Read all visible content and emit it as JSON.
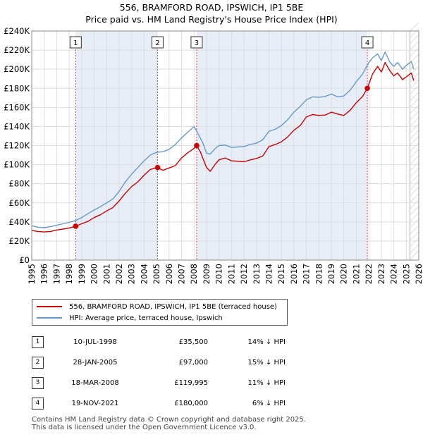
{
  "title": "556, BRAMFORD ROAD, IPSWICH, IP1 5BE",
  "subtitle": "Price paid vs. HM Land Registry's House Price Index (HPI)",
  "chart_data": {
    "type": "line",
    "xlim": [
      1995,
      2026
    ],
    "ylim": [
      0,
      240000
    ],
    "x_ticks": [
      "1995",
      "1996",
      "1997",
      "1998",
      "1999",
      "2000",
      "2001",
      "2002",
      "2003",
      "2004",
      "2005",
      "2006",
      "2007",
      "2008",
      "2009",
      "2010",
      "2011",
      "2012",
      "2013",
      "2014",
      "2015",
      "2016",
      "2017",
      "2018",
      "2019",
      "2020",
      "2021",
      "2022",
      "2023",
      "2024",
      "2025",
      "2026"
    ],
    "y_ticks": [
      {
        "value": 0,
        "label": "£0"
      },
      {
        "value": 20000,
        "label": "£20K"
      },
      {
        "value": 40000,
        "label": "£40K"
      },
      {
        "value": 60000,
        "label": "£60K"
      },
      {
        "value": 80000,
        "label": "£80K"
      },
      {
        "value": 100000,
        "label": "£100K"
      },
      {
        "value": 120000,
        "label": "£120K"
      },
      {
        "value": 140000,
        "label": "£140K"
      },
      {
        "value": 160000,
        "label": "£160K"
      },
      {
        "value": 180000,
        "label": "£180K"
      },
      {
        "value": 200000,
        "label": "£200K"
      },
      {
        "value": 220000,
        "label": "£220K"
      },
      {
        "value": 240000,
        "label": "£240K"
      }
    ],
    "shaded_periods": [
      [
        1998.52,
        2005.08
      ],
      [
        2008.21,
        2021.88
      ]
    ],
    "forecast_start": 2025.3,
    "series": [
      {
        "name": "556, BRAMFORD ROAD, IPSWICH, IP1 5BE (terraced house)",
        "color": "#cc0000",
        "x": [
          1995.0,
          1995.5,
          1996.0,
          1996.5,
          1997.0,
          1997.5,
          1998.0,
          1998.52,
          1999.0,
          1999.5,
          2000.0,
          2000.5,
          2001.0,
          2001.5,
          2002.0,
          2002.5,
          2003.0,
          2003.5,
          2004.0,
          2004.5,
          2005.08,
          2005.5,
          2006.0,
          2006.5,
          2007.0,
          2007.5,
          2008.0,
          2008.21,
          2008.5,
          2009.0,
          2009.3,
          2009.7,
          2010.0,
          2010.5,
          2011.0,
          2011.5,
          2012.0,
          2012.5,
          2013.0,
          2013.5,
          2014.0,
          2014.5,
          2015.0,
          2015.5,
          2016.0,
          2016.5,
          2017.0,
          2017.5,
          2018.0,
          2018.5,
          2019.0,
          2019.5,
          2020.0,
          2020.5,
          2021.0,
          2021.5,
          2021.88,
          2022.3,
          2022.7,
          2023.0,
          2023.3,
          2023.7,
          2024.0,
          2024.3,
          2024.7,
          2025.0,
          2025.4,
          2025.6
        ],
        "values": [
          31000,
          30000,
          29500,
          30000,
          31500,
          32500,
          33500,
          35500,
          38000,
          40500,
          44500,
          47500,
          51500,
          55000,
          62000,
          70000,
          77000,
          82000,
          89000,
          95000,
          97000,
          94000,
          96500,
          99000,
          107000,
          112500,
          117000,
          119995,
          113500,
          97000,
          93000,
          100500,
          105000,
          107000,
          104000,
          103500,
          103000,
          105000,
          106500,
          109000,
          119000,
          121000,
          124000,
          129000,
          136000,
          141000,
          150000,
          152500,
          151500,
          152000,
          155000,
          153000,
          151500,
          157000,
          165000,
          171500,
          180000,
          195000,
          203000,
          197000,
          207000,
          198000,
          193000,
          196000,
          189000,
          192000,
          196000,
          188000
        ]
      },
      {
        "name": "HPI: Average price, terraced house, Ipswich",
        "color": "#6699cc",
        "x": [
          1995.0,
          1995.5,
          1996.0,
          1996.5,
          1997.0,
          1997.5,
          1998.0,
          1998.52,
          1999.0,
          1999.5,
          2000.0,
          2000.5,
          2001.0,
          2001.5,
          2002.0,
          2002.5,
          2003.0,
          2003.5,
          2004.0,
          2004.5,
          2005.0,
          2005.5,
          2006.0,
          2006.5,
          2007.0,
          2007.5,
          2008.0,
          2008.3,
          2008.7,
          2009.0,
          2009.3,
          2009.7,
          2010.0,
          2010.5,
          2011.0,
          2011.5,
          2012.0,
          2012.5,
          2013.0,
          2013.5,
          2014.0,
          2014.5,
          2015.0,
          2015.5,
          2016.0,
          2016.5,
          2017.0,
          2017.5,
          2018.0,
          2018.5,
          2019.0,
          2019.5,
          2020.0,
          2020.5,
          2021.0,
          2021.5,
          2022.0,
          2022.3,
          2022.7,
          2023.0,
          2023.3,
          2023.7,
          2024.0,
          2024.3,
          2024.7,
          2025.0,
          2025.4,
          2025.6
        ],
        "values": [
          36000,
          34500,
          34000,
          35000,
          36500,
          38000,
          39500,
          41500,
          44500,
          48500,
          52500,
          56000,
          60000,
          64000,
          72000,
          82000,
          90000,
          97000,
          104000,
          110000,
          113000,
          113500,
          116000,
          121000,
          128000,
          134000,
          140000,
          133000,
          123000,
          112000,
          111000,
          117000,
          120000,
          120500,
          118000,
          118500,
          119000,
          121000,
          122500,
          126000,
          135000,
          137000,
          141000,
          147000,
          155000,
          161000,
          168000,
          171000,
          170500,
          171500,
          174000,
          171000,
          172000,
          178000,
          187000,
          195000,
          207000,
          212000,
          216000,
          209000,
          218000,
          207000,
          203000,
          207000,
          200000,
          204000,
          208000,
          200000
        ]
      }
    ],
    "sales": [
      {
        "id": "1",
        "x": 1998.52,
        "value": 35500
      },
      {
        "id": "2",
        "x": 2005.08,
        "value": 97000
      },
      {
        "id": "3",
        "x": 2008.21,
        "value": 119995
      },
      {
        "id": "4",
        "x": 2021.88,
        "value": 180000
      }
    ]
  },
  "legend": {
    "property": "556, BRAMFORD ROAD, IPSWICH, IP1 5BE (terraced house)",
    "hpi": "HPI: Average price, terraced house, Ipswich"
  },
  "transactions": [
    {
      "num": "1",
      "date": "10-JUL-1998",
      "price": "£35,500",
      "hpi": "14% ↓ HPI"
    },
    {
      "num": "2",
      "date": "28-JAN-2005",
      "price": "£97,000",
      "hpi": "15% ↓ HPI"
    },
    {
      "num": "3",
      "date": "18-MAR-2008",
      "price": "£119,995",
      "hpi": "11% ↓ HPI"
    },
    {
      "num": "4",
      "date": "19-NOV-2021",
      "price": "£180,000",
      "hpi": "6% ↓ HPI"
    }
  ],
  "footer": {
    "line1": "Contains HM Land Registry data © Crown copyright and database right 2025.",
    "line2": "This data is licensed under the Open Government Licence v3.0."
  }
}
